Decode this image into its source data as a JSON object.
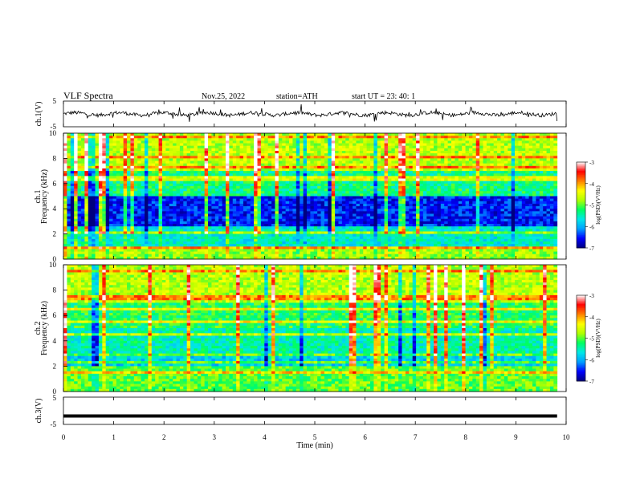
{
  "header": {
    "title": "VLF  Spectra",
    "date": "Nov.25, 2022",
    "station": "station=ATH",
    "start": "start  UT  =    23: 40: 1"
  },
  "chart_data": [
    {
      "type": "line",
      "name": "ch1-waveform",
      "ylabel": "ch.1(V)",
      "ylim": [
        -5,
        5
      ],
      "yticks": [
        "5",
        "-5"
      ],
      "xlim": [
        0,
        10
      ],
      "x_end": 9.82,
      "baseline": 0
    },
    {
      "type": "heatmap",
      "name": "ch1-spectrogram",
      "ylabel_top": "ch.1",
      "ylabel": "Frequency  (kHz)",
      "ylim": [
        0,
        10
      ],
      "yticks": [
        "0",
        "2",
        "4",
        "6",
        "8",
        "10"
      ],
      "xlim": [
        0,
        10
      ],
      "x_end": 9.82,
      "colorbar": {
        "label": "log(PSD)(V²/Hz)",
        "range": [
          -7,
          -3
        ],
        "ticks": [
          "-3",
          "-4",
          "-5",
          "-6",
          "-7"
        ]
      }
    },
    {
      "type": "heatmap",
      "name": "ch2-spectrogram",
      "ylabel_top": "ch.2",
      "ylabel": "Frequency  (kHz)",
      "ylim": [
        0,
        10
      ],
      "yticks": [
        "0",
        "2",
        "4",
        "6",
        "8",
        "10"
      ],
      "xlim": [
        0,
        10
      ],
      "x_end": 9.82,
      "colorbar": {
        "label": "log(PSD)(V²/Hz)",
        "range": [
          -7,
          -3
        ],
        "ticks": [
          "-3",
          "-4",
          "-5",
          "-6",
          "-7"
        ]
      }
    },
    {
      "type": "line",
      "name": "ch3-waveform",
      "ylabel": "ch.3(V)",
      "ylim": [
        -5,
        5
      ],
      "yticks": [
        "5",
        "0",
        "-5"
      ],
      "xlim": [
        0,
        10
      ],
      "x_end": 9.82,
      "baseline": -1.9
    }
  ],
  "xaxis": {
    "label": "Time  (min)",
    "ticks": [
      "0",
      "1",
      "2",
      "3",
      "4",
      "5",
      "6",
      "7",
      "8",
      "9",
      "10"
    ]
  },
  "colors": {
    "colormap": [
      "#000080",
      "#0000ff",
      "#00a0ff",
      "#00e8e8",
      "#00ff60",
      "#b0ff00",
      "#ffff00",
      "#ff8000",
      "#ff0000",
      "#ffffff"
    ]
  }
}
